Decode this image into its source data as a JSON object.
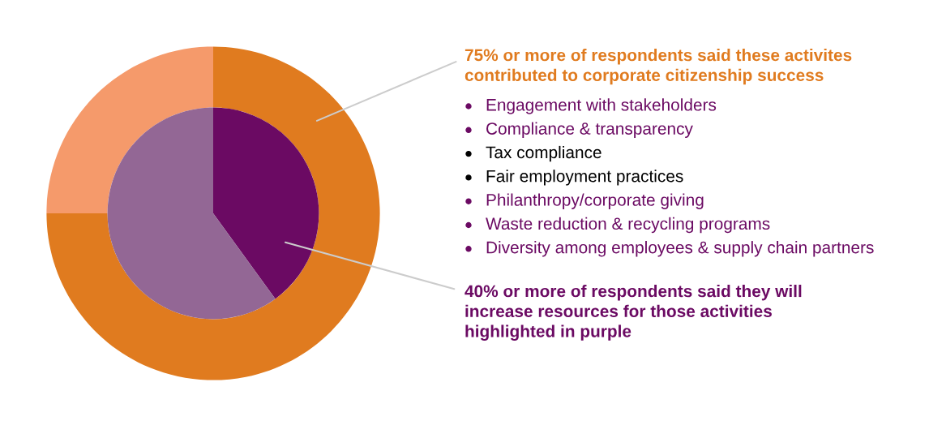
{
  "chart_data": {
    "type": "donut",
    "categories": [
      null,
      null
    ],
    "series": [
      {
        "colors": [
          "#e07b1f",
          "#f59a6b"
        ],
        "values": [
          75,
          25
        ]
      },
      {
        "type": "pie",
        "colors": [
          "#6b0a63",
          "#936795"
        ],
        "values": [
          40,
          60
        ]
      }
    ],
    "annotations": [
      "75% or more of respondents said these activites\ncontributed to corporate citizenship success",
      "Engagement with stakeholders",
      "Compliance & transparency",
      "Tax compliance",
      "Fair employment practices",
      "Philanthropy/corporate giving",
      "Waste reduction & recycling programs",
      "Diversity among employees & supply chain partners",
      "40% or more of respondents said they will\nincrease resources for those activities\nhighlighted in purple"
    ]
  }
}
